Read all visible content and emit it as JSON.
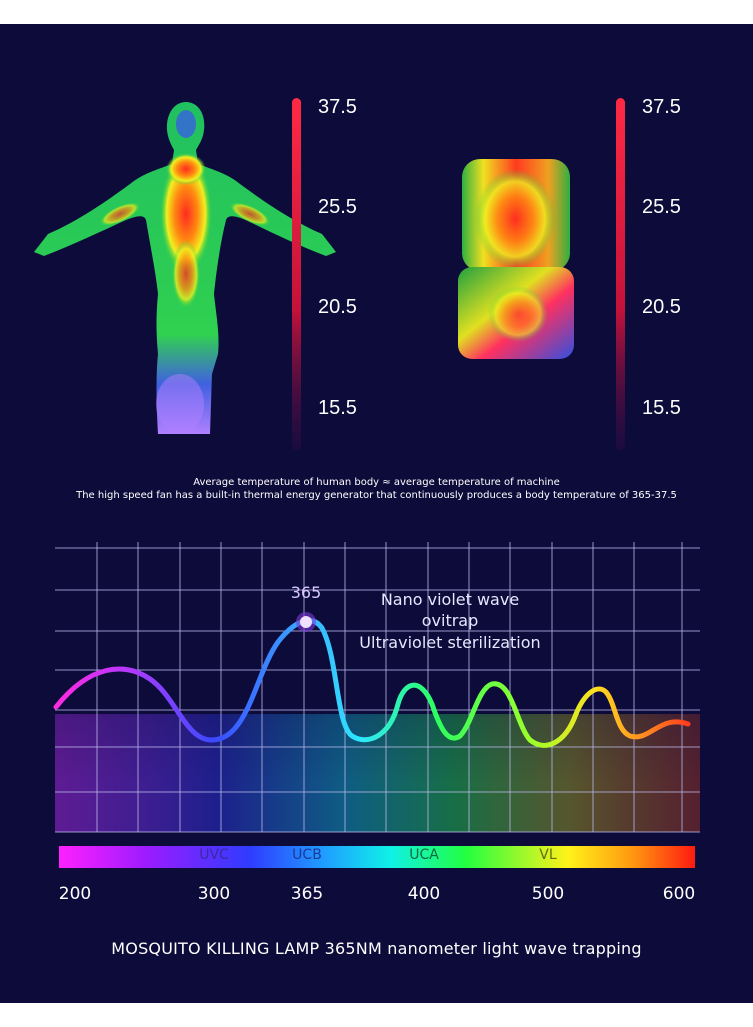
{
  "thermal": {
    "scale_left": [
      "37.5",
      "25.5",
      "20.5",
      "15.5"
    ],
    "scale_right": [
      "37.5",
      "25.5",
      "20.5",
      "15.5"
    ]
  },
  "captions": {
    "line1": "Average temperature of human body ≈ average temperature of machine",
    "line2": "The high speed fan has a built-in thermal energy generator that continuously produces a body temperature of 365-37.5"
  },
  "chart_data": {
    "type": "line",
    "peak_label": "365",
    "annotation": [
      "Nano violet wave",
      "ovitrap",
      "Ultraviolet sterilization"
    ],
    "bands": [
      "UVC",
      "UCB",
      "UCA",
      "VL"
    ],
    "x_ticks": [
      "200",
      "300",
      "365",
      "400",
      "500",
      "600"
    ]
  },
  "footer": {
    "title": "MOSQUITO KILLING LAMP 365NM nanometer light wave trapping"
  },
  "colors": {
    "background": "#0d0b3a",
    "scale_bar": "#e0183a"
  }
}
